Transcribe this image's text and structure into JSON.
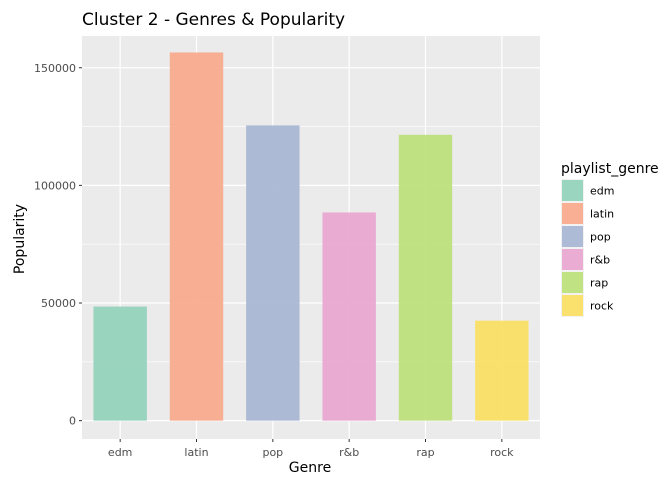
{
  "chart_data": {
    "type": "bar",
    "title": "Cluster 2 - Genres & Popularity",
    "xlabel": "Genre",
    "ylabel": "Popularity",
    "categories": [
      "edm",
      "latin",
      "pop",
      "r&b",
      "rap",
      "rock"
    ],
    "values": [
      48500,
      156500,
      125500,
      88500,
      121500,
      42500
    ],
    "ylim": [
      -7800,
      163500
    ],
    "yticks": [
      0,
      50000,
      100000,
      150000
    ],
    "ytick_labels": [
      "0",
      "50000",
      "100000",
      "150000"
    ],
    "grid": true,
    "legend": {
      "title": "playlist_genre",
      "placement": "right",
      "entries": [
        "edm",
        "latin",
        "pop",
        "r&b",
        "rap",
        "rock"
      ]
    },
    "colors": [
      "#95d3bd",
      "#f8ab8e",
      "#a9b7d4",
      "#e9a8d1",
      "#bde07c",
      "#fadf66"
    ],
    "panel_background": "#ebebeb"
  }
}
